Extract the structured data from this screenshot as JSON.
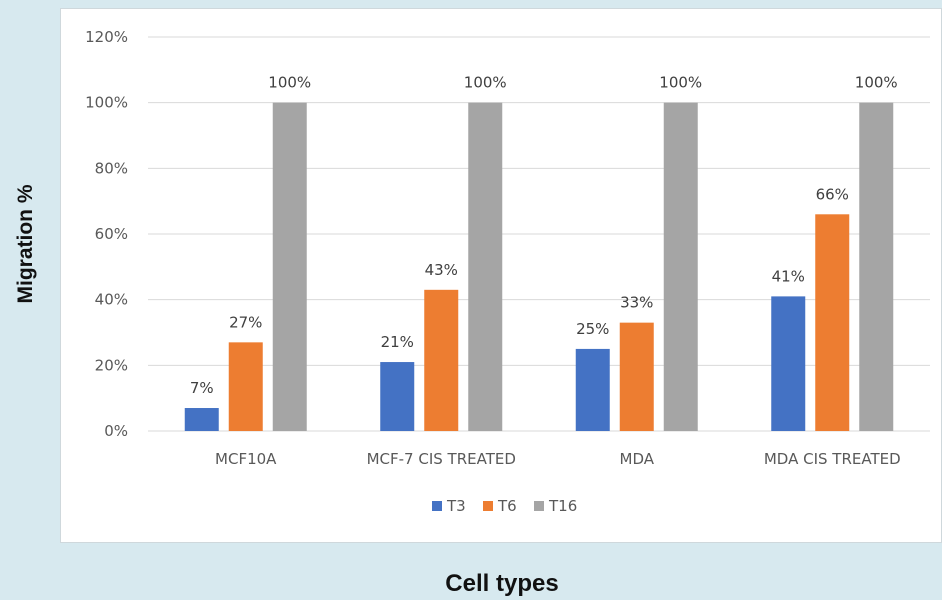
{
  "chart_data": {
    "type": "bar",
    "categories": [
      "MCF10A",
      "MCF-7 CIS TREATED",
      "MDA",
      "MDA CIS TREATED"
    ],
    "series": [
      {
        "name": "T3",
        "color": "#4472c4",
        "values": [
          7,
          21,
          25,
          41
        ]
      },
      {
        "name": "T6",
        "color": "#ed7d31",
        "values": [
          27,
          43,
          33,
          66
        ]
      },
      {
        "name": "T16",
        "color": "#a5a5a5",
        "values": [
          100,
          100,
          100,
          100
        ]
      }
    ],
    "data_labels": [
      [
        "7%",
        "21%",
        "25%",
        "41%"
      ],
      [
        "27%",
        "43%",
        "33%",
        "66%"
      ],
      [
        "100%",
        "100%",
        "100%",
        "100%"
      ]
    ],
    "y_ticks": [
      {
        "value": 0,
        "label": "0%"
      },
      {
        "value": 20,
        "label": "20%"
      },
      {
        "value": 40,
        "label": "40%"
      },
      {
        "value": 60,
        "label": "60%"
      },
      {
        "value": 80,
        "label": "80%"
      },
      {
        "value": 100,
        "label": "100%"
      },
      {
        "value": 120,
        "label": "120%"
      }
    ],
    "ylim": [
      0,
      120
    ],
    "xlabel": "Cell types",
    "ylabel": "Migration %",
    "grid": true,
    "legend_position": "bottom"
  }
}
